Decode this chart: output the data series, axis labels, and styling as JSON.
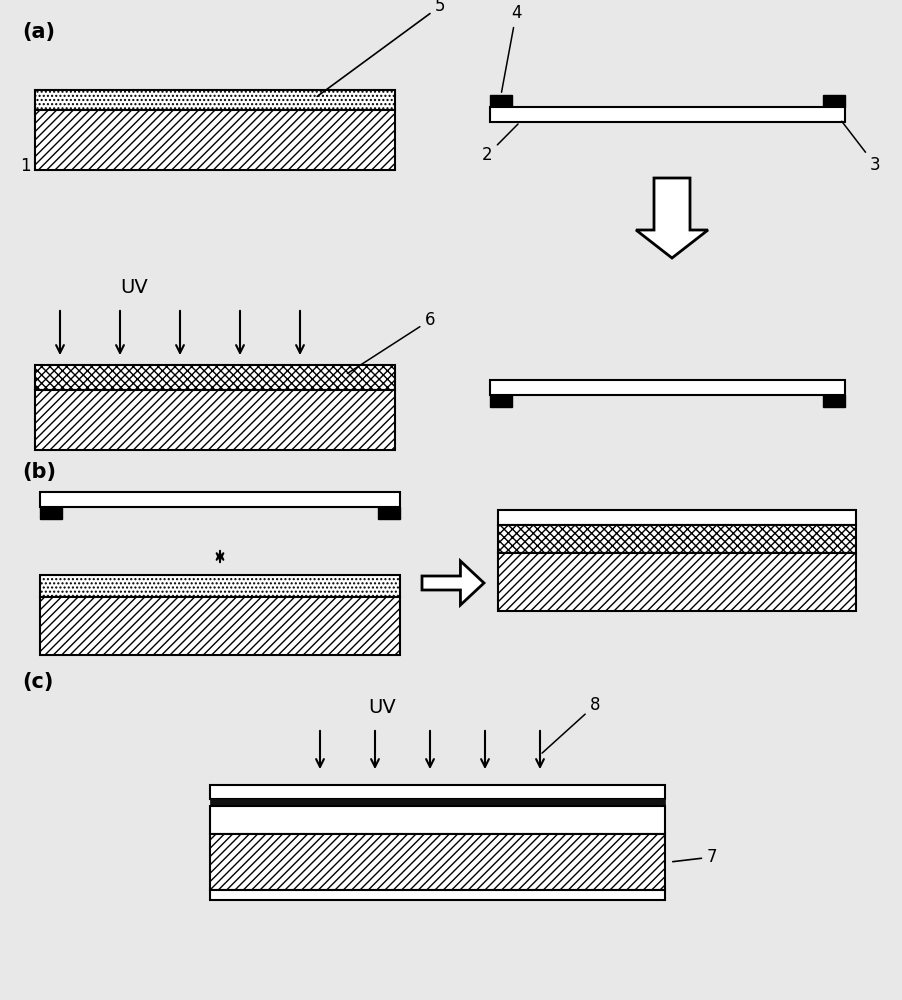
{
  "bg_color": "#e8e8e8",
  "label_a": "(a)",
  "label_b": "(b)",
  "label_c": "(c)",
  "uv_text": "UV",
  "hatch_diagonal": "////",
  "hatch_cross": "xxxx",
  "hatch_dot": "....",
  "hatch_wave": "~~~~",
  "black": "#000000",
  "white": "#ffffff"
}
